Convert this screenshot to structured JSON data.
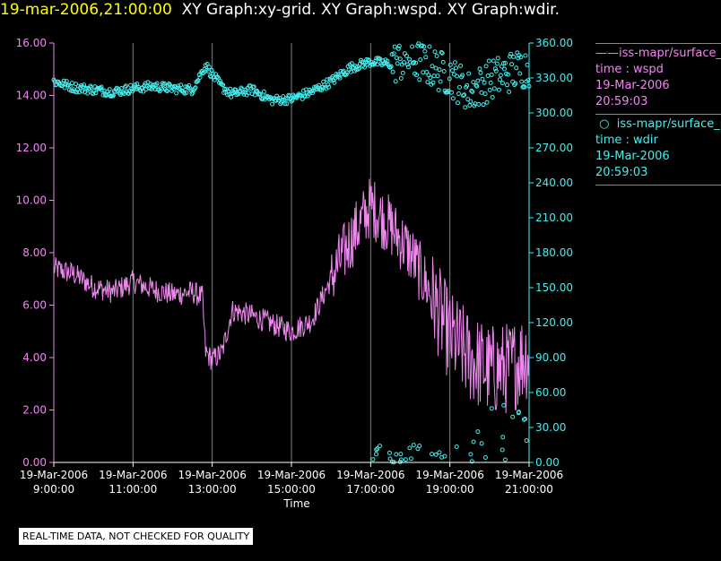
{
  "header": {
    "timestamp": "19-mar-2006,21:00:00",
    "graphs": "XY Graph:xy-grid.  XY Graph:wspd.  XY Graph:wdir."
  },
  "legend": {
    "series1": {
      "label": "iss-mapr/surface_m",
      "line2": "time : wspd",
      "line3": "19-Mar-2006",
      "line4": "20:59:03"
    },
    "series2": {
      "label": "iss-mapr/surface_m",
      "line2": "time : wdir",
      "line3": "19-Mar-2006",
      "line4": "20:59:03"
    }
  },
  "note": "REAL-TIME DATA, NOT CHECKED FOR QUALITY",
  "colors": {
    "wspd": "#ee88ee",
    "wdir": "#44eeee",
    "timestamp": "#ffff00",
    "grid": "#808080",
    "axis": "#ffffff"
  },
  "chart_data": {
    "type": "line",
    "xlabel": "Time",
    "x_ticks": [
      {
        "date": "19-Mar-2006",
        "time": "9:00:00"
      },
      {
        "date": "19-Mar-2006",
        "time": "11:00:00"
      },
      {
        "date": "19-Mar-2006",
        "time": "13:00:00"
      },
      {
        "date": "19-Mar-2006",
        "time": "15:00:00"
      },
      {
        "date": "19-Mar-2006",
        "time": "17:00:00"
      },
      {
        "date": "19-Mar-2006",
        "time": "19:00:00"
      },
      {
        "date": "19-Mar-2006",
        "time": "21:00:00"
      }
    ],
    "xlim": [
      "19-Mar-2006 9:00:00",
      "19-Mar-2006 21:00:00"
    ],
    "grid": "vertical",
    "y_left": {
      "range": [
        0,
        16
      ],
      "ticks": [
        "0.00",
        "2.00",
        "4.00",
        "6.00",
        "8.00",
        "10.00",
        "12.00",
        "14.00",
        "16.00"
      ]
    },
    "y_right": {
      "range": [
        0,
        360
      ],
      "ticks": [
        "0.00",
        "30.00",
        "60.00",
        "90.00",
        "120.00",
        "150.00",
        "180.00",
        "210.00",
        "240.00",
        "270.00",
        "300.00",
        "330.00",
        "360.00"
      ]
    },
    "series": [
      {
        "axis": "left",
        "style": "line",
        "x": [
          "9:00",
          "9:30",
          "10:00",
          "10:30",
          "11:00",
          "11:30",
          "12:00",
          "12:30",
          "12:45",
          "12:50",
          "13:00",
          "13:15",
          "13:30",
          "14:00",
          "14:30",
          "15:00",
          "15:30",
          "16:00",
          "16:30",
          "17:00",
          "17:30",
          "18:00",
          "18:30",
          "19:00",
          "19:30",
          "20:00",
          "20:30",
          "21:00"
        ],
        "values": [
          7.4,
          7.2,
          6.7,
          6.5,
          6.9,
          6.6,
          6.4,
          6.5,
          6.3,
          4.2,
          3.9,
          4.2,
          5.8,
          5.6,
          5.3,
          5.0,
          5.4,
          7.0,
          8.5,
          9.8,
          9.0,
          8.0,
          6.5,
          4.8,
          4.0,
          3.5,
          3.6,
          4.2
        ]
      },
      {
        "axis": "right",
        "style": "markers",
        "x": [
          "9:00",
          "9:30",
          "10:00",
          "10:30",
          "11:00",
          "11:30",
          "12:00",
          "12:30",
          "12:50",
          "13:00",
          "13:15",
          "13:30",
          "14:00",
          "14:30",
          "15:00",
          "15:30",
          "16:00",
          "16:30",
          "17:00",
          "17:30",
          "18:00",
          "18:30",
          "19:00",
          "19:30",
          "20:00",
          "20:30",
          "21:00"
        ],
        "values": [
          327,
          322,
          320,
          318,
          321,
          323,
          321,
          320,
          341,
          333,
          322,
          316,
          320,
          311,
          312,
          318,
          327,
          339,
          344,
          342,
          347,
          340,
          332,
          318,
          328,
          335,
          340
        ]
      }
    ]
  }
}
